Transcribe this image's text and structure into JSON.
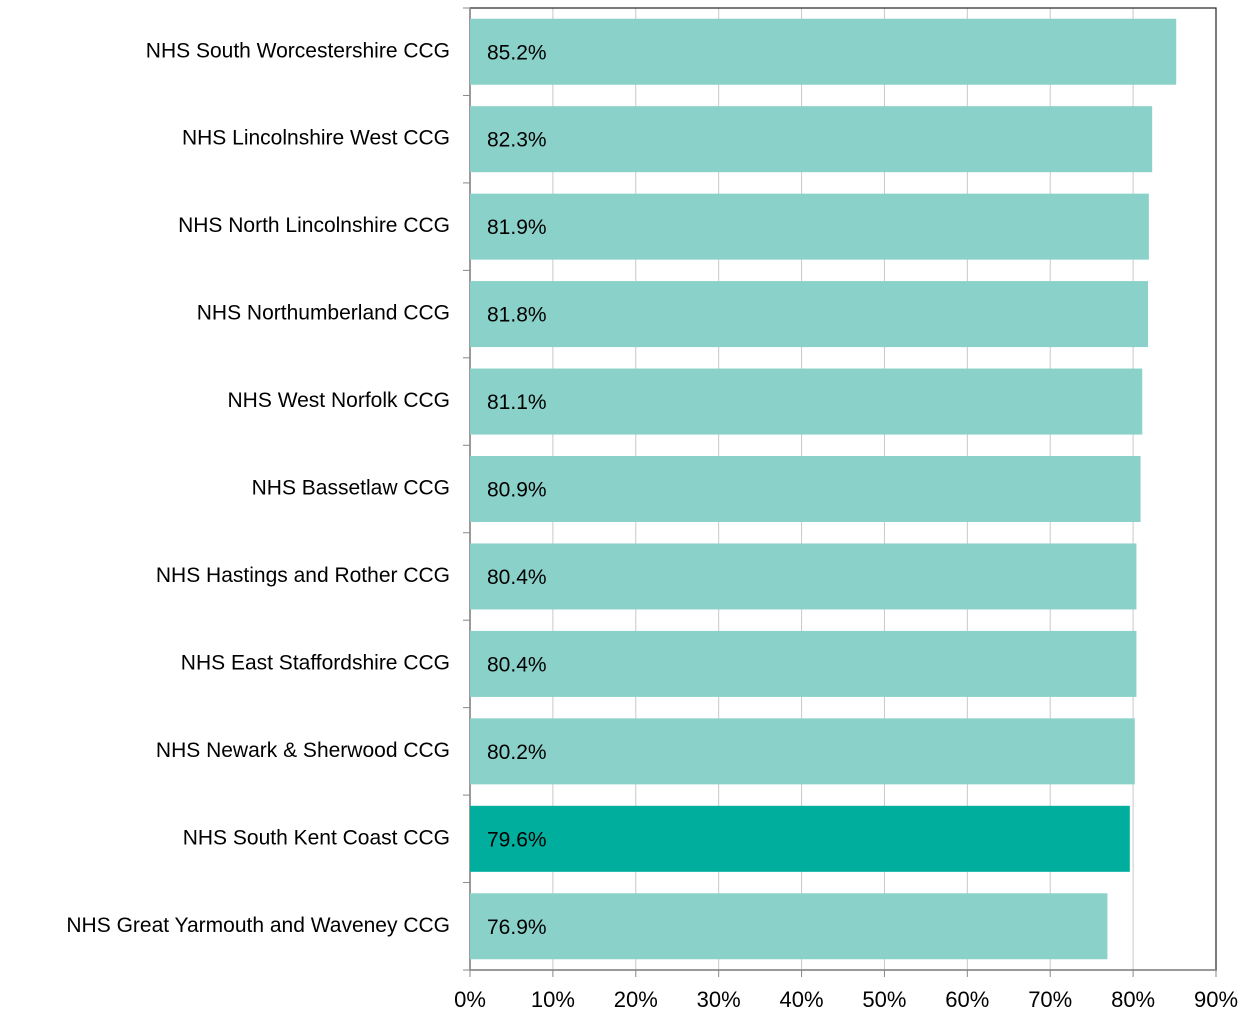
{
  "chart_data": {
    "type": "bar",
    "orientation": "horizontal",
    "categories": [
      "NHS South Worcestershire CCG",
      "NHS Lincolnshire West CCG",
      "NHS North Lincolnshire CCG",
      "NHS Northumberland CCG",
      "NHS West Norfolk CCG",
      "NHS Bassetlaw CCG",
      "NHS Hastings and Rother CCG",
      "NHS East Staffordshire CCG",
      "NHS Newark & Sherwood CCG",
      "NHS South Kent Coast CCG",
      "NHS Great Yarmouth and Waveney CCG"
    ],
    "values": [
      85.2,
      82.3,
      81.9,
      81.8,
      81.1,
      80.9,
      80.4,
      80.4,
      80.2,
      79.6,
      76.9
    ],
    "value_labels": [
      "85.2%",
      "82.3%",
      "81.9%",
      "81.8%",
      "81.1%",
      "80.9%",
      "80.4%",
      "80.4%",
      "80.2%",
      "79.6%",
      "76.9%"
    ],
    "colors": [
      "#8ad1c9",
      "#8ad1c9",
      "#8ad1c9",
      "#8ad1c9",
      "#8ad1c9",
      "#8ad1c9",
      "#8ad1c9",
      "#8ad1c9",
      "#8ad1c9",
      "#00ae9e",
      "#8ad1c9"
    ],
    "xlim": [
      0,
      90
    ],
    "xticks": [
      {
        "value": 0,
        "label": "0%"
      },
      {
        "value": 10,
        "label": "10%"
      },
      {
        "value": 20,
        "label": "20%"
      },
      {
        "value": 30,
        "label": "30%"
      },
      {
        "value": 40,
        "label": "40%"
      },
      {
        "value": 50,
        "label": "50%"
      },
      {
        "value": 60,
        "label": "60%"
      },
      {
        "value": 70,
        "label": "70%"
      },
      {
        "value": 80,
        "label": "80%"
      },
      {
        "value": 90,
        "label": "90%"
      }
    ],
    "grid": true
  }
}
